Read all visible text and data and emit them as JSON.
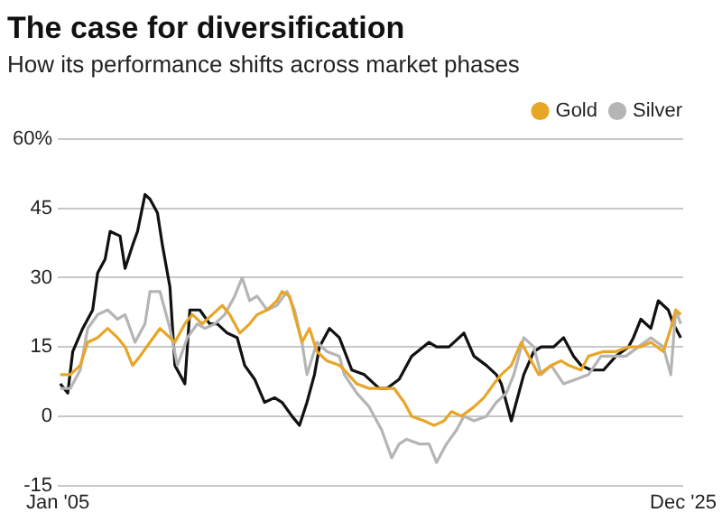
{
  "chart_data": {
    "type": "line",
    "title": "The case for diversification",
    "subtitle": "How its performance shifts across market phases",
    "legend": "top right",
    "grid": "y",
    "xlim": [
      "2005-01",
      "2025-12"
    ],
    "xticks": [
      {
        "value": "2005-01",
        "label": "Jan '05"
      },
      {
        "value": "2025-12",
        "label": "Dec '25"
      }
    ],
    "ylim": [
      -15,
      60
    ],
    "yticks": [
      -15,
      0,
      15,
      30,
      45,
      {
        "value": 60,
        "label": "60%"
      }
    ],
    "series": [
      {
        "name": "Gold",
        "color": "#e8a628",
        "x": [
          "2005-02",
          "2005-06",
          "2005-10",
          "2006-01",
          "2006-05",
          "2006-09",
          "2007-01",
          "2007-04",
          "2007-07",
          "2007-10",
          "2008-02",
          "2008-06",
          "2008-10",
          "2008-12",
          "2009-04",
          "2009-07",
          "2009-11",
          "2010-03",
          "2010-07",
          "2010-10",
          "2011-02",
          "2011-06",
          "2011-09",
          "2012-01",
          "2012-05",
          "2012-07",
          "2012-10",
          "2012-12",
          "2013-03",
          "2013-06",
          "2013-09",
          "2014-01",
          "2014-06",
          "2014-08",
          "2015-01",
          "2015-06",
          "2015-11",
          "2016-04",
          "2016-08",
          "2016-11",
          "2017-04",
          "2017-08",
          "2017-12",
          "2018-03",
          "2018-07",
          "2018-12",
          "2019-04",
          "2019-08",
          "2019-11",
          "2020-03",
          "2020-07",
          "2020-10",
          "2021-02",
          "2021-07",
          "2021-11",
          "2022-02",
          "2022-07",
          "2022-10",
          "2023-04",
          "2023-09",
          "2024-02",
          "2024-07",
          "2024-11",
          "2025-04",
          "2025-07",
          "2025-09",
          "2025-11"
        ],
        "values": [
          9,
          9,
          11,
          16,
          17,
          19,
          17,
          15,
          11,
          13,
          16,
          19,
          17,
          16,
          20,
          22,
          20,
          22,
          24,
          22,
          18,
          20,
          22,
          23,
          25,
          27,
          26,
          22,
          16,
          19,
          14,
          12,
          11,
          10,
          7,
          6,
          6,
          6,
          3,
          0,
          -1,
          -2,
          -1,
          1,
          0,
          2,
          4,
          7,
          9,
          11,
          16,
          13,
          9,
          11,
          12,
          11,
          10,
          13,
          14,
          14,
          15,
          15,
          16,
          14,
          19,
          23,
          22
        ]
      },
      {
        "name": "Silver",
        "color": "#b5b5b5",
        "x": [
          "2005-02",
          "2005-06",
          "2005-10",
          "2006-01",
          "2006-05",
          "2006-09",
          "2007-01",
          "2007-04",
          "2007-08",
          "2007-12",
          "2008-02",
          "2008-06",
          "2008-10",
          "2009-01",
          "2009-05",
          "2009-09",
          "2009-12",
          "2010-04",
          "2010-08",
          "2010-12",
          "2011-03",
          "2011-06",
          "2011-09",
          "2012-01",
          "2012-05",
          "2012-09",
          "2012-12",
          "2013-03",
          "2013-05",
          "2013-09",
          "2014-01",
          "2014-06",
          "2014-08",
          "2015-01",
          "2015-06",
          "2015-11",
          "2016-03",
          "2016-06",
          "2016-09",
          "2017-02",
          "2017-06",
          "2017-09",
          "2018-01",
          "2018-05",
          "2018-08",
          "2018-12",
          "2019-05",
          "2019-09",
          "2020-01",
          "2020-04",
          "2020-08",
          "2020-12",
          "2021-03",
          "2021-07",
          "2021-12",
          "2022-05",
          "2022-10",
          "2023-03",
          "2023-08",
          "2024-01",
          "2024-06",
          "2024-11",
          "2025-04",
          "2025-07",
          "2025-09",
          "2025-11"
        ],
        "values": [
          6,
          6,
          10,
          19,
          22,
          23,
          21,
          22,
          16,
          20,
          27,
          27,
          19,
          11,
          17,
          20,
          19,
          20,
          22,
          26,
          30,
          25,
          26,
          23,
          24,
          27,
          23,
          16,
          9,
          16,
          14,
          13,
          9,
          5,
          2,
          -3,
          -9,
          -6,
          -5,
          -6,
          -6,
          -10,
          -6,
          -3,
          0,
          -1,
          0,
          3,
          5,
          9,
          17,
          15,
          9,
          11,
          7,
          8,
          9,
          13,
          13,
          13,
          15,
          17,
          15,
          9,
          23,
          20
        ]
      },
      {
        "color": "#111111",
        "x": [
          "2005-02",
          "2005-05",
          "2005-07",
          "2005-11",
          "2006-03",
          "2006-05",
          "2006-08",
          "2006-10",
          "2007-02",
          "2007-04",
          "2007-07",
          "2007-09",
          "2007-12",
          "2008-02",
          "2008-05",
          "2008-07",
          "2008-10",
          "2008-12",
          "2009-04",
          "2009-06",
          "2009-10",
          "2010-02",
          "2010-05",
          "2010-09",
          "2011-01",
          "2011-04",
          "2011-08",
          "2011-12",
          "2012-04",
          "2012-07",
          "2012-11",
          "2013-02",
          "2013-05",
          "2013-08",
          "2013-10",
          "2014-02",
          "2014-06",
          "2014-11",
          "2015-04",
          "2015-10",
          "2016-01",
          "2016-06",
          "2016-11",
          "2017-06",
          "2017-09",
          "2018-02",
          "2018-08",
          "2018-12",
          "2019-05",
          "2019-09",
          "2019-11",
          "2020-03",
          "2020-05",
          "2020-08",
          "2020-12",
          "2021-03",
          "2021-08",
          "2021-12",
          "2022-04",
          "2022-07",
          "2022-11",
          "2023-04",
          "2023-09",
          "2024-02",
          "2024-04",
          "2024-07",
          "2024-11",
          "2025-02",
          "2025-06",
          "2025-08",
          "2025-11"
        ],
        "values": [
          7,
          5,
          14,
          19,
          23,
          31,
          34,
          40,
          39,
          32,
          37,
          40,
          48,
          47,
          44,
          37,
          28,
          11,
          7,
          23,
          23,
          20,
          20,
          18,
          17,
          11,
          8,
          3,
          4,
          3,
          0,
          -2,
          3,
          9,
          15,
          19,
          17,
          10,
          9,
          6,
          6,
          8,
          13,
          16,
          15,
          15,
          18,
          13,
          11,
          9,
          7,
          -1,
          3,
          9,
          14,
          15,
          15,
          17,
          13,
          11,
          10,
          10,
          13,
          15,
          17,
          21,
          19,
          25,
          23,
          20,
          17
        ]
      }
    ]
  }
}
